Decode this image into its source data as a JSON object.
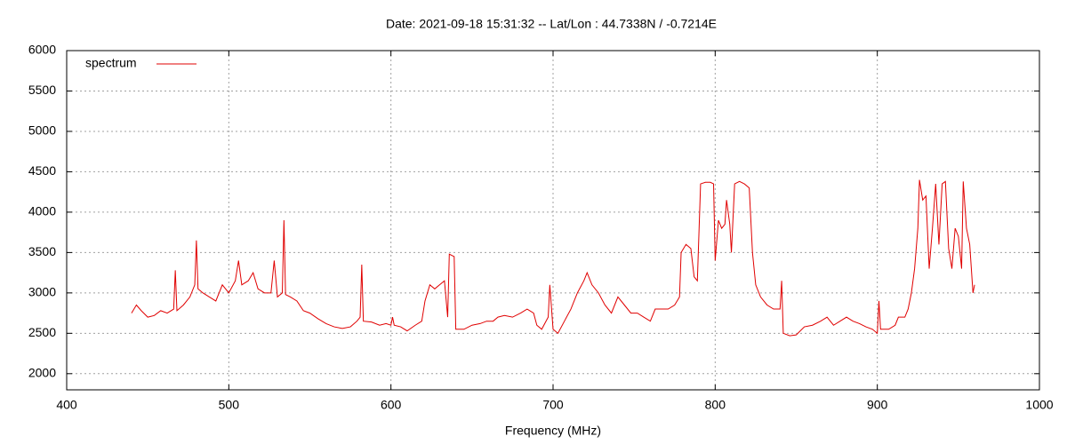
{
  "chart_data": {
    "type": "line",
    "title": "Date: 2021-09-18 15:31:32  --  Lat/Lon : 44.7338N / -0.7214E",
    "x_label": "Frequency (MHz)",
    "legend": "top-left",
    "grid": true,
    "xlim": [
      400,
      1000
    ],
    "xticks": [
      400,
      500,
      600,
      700,
      800,
      900,
      1000
    ],
    "ylim": [
      1800,
      6000
    ],
    "yticks": [
      2000,
      2500,
      3000,
      3500,
      4000,
      4500,
      5000,
      5500,
      6000
    ],
    "series": [
      {
        "name": "spectrum",
        "color": "#e00000",
        "x": [
          440,
          443,
          446,
          450,
          454,
          458,
          462,
          466,
          467,
          468,
          472,
          476,
          479,
          480,
          481,
          484,
          488,
          492,
          496,
          500,
          504,
          506,
          508,
          512,
          515,
          518,
          522,
          526,
          528,
          530,
          533,
          534,
          535,
          538,
          542,
          546,
          550,
          555,
          560,
          565,
          570,
          575,
          579,
          581,
          582,
          583,
          588,
          593,
          597,
          600,
          601,
          602,
          606,
          610,
          615,
          619,
          621,
          624,
          627,
          630,
          633,
          635,
          636,
          639,
          640,
          645,
          650,
          655,
          659,
          663,
          666,
          670,
          675,
          680,
          684,
          688,
          690,
          693,
          697,
          698,
          700,
          703,
          707,
          711,
          715,
          719,
          721,
          724,
          728,
          732,
          736,
          740,
          744,
          748,
          752,
          756,
          760,
          763,
          767,
          771,
          775,
          778,
          779,
          782,
          785,
          787,
          789,
          791,
          794,
          797,
          799,
          800,
          802,
          804,
          806,
          807,
          809,
          810,
          812,
          815,
          818,
          821,
          823,
          825,
          828,
          832,
          836,
          840,
          841,
          842,
          846,
          850,
          855,
          860,
          865,
          869,
          873,
          877,
          881,
          885,
          889,
          893,
          897,
          900,
          901,
          902,
          907,
          911,
          913,
          917,
          919,
          921,
          923,
          925,
          926,
          928,
          930,
          932,
          934,
          936,
          938,
          940,
          942,
          944,
          946,
          948,
          950,
          952,
          953,
          955,
          957,
          958,
          959,
          960
        ],
        "values": [
          2750,
          2850,
          2780,
          2700,
          2720,
          2780,
          2750,
          2800,
          3280,
          2780,
          2850,
          2950,
          3100,
          3650,
          3050,
          3000,
          2950,
          2900,
          3100,
          3000,
          3150,
          3400,
          3100,
          3150,
          3250,
          3050,
          3000,
          3000,
          3400,
          2950,
          3000,
          3900,
          2980,
          2950,
          2900,
          2780,
          2750,
          2680,
          2620,
          2580,
          2560,
          2580,
          2650,
          2700,
          3350,
          2650,
          2640,
          2600,
          2620,
          2600,
          2700,
          2600,
          2580,
          2530,
          2600,
          2650,
          2900,
          3100,
          3050,
          3100,
          3150,
          2700,
          3480,
          3450,
          2550,
          2550,
          2600,
          2620,
          2650,
          2650,
          2700,
          2720,
          2700,
          2750,
          2800,
          2750,
          2600,
          2550,
          2700,
          3100,
          2550,
          2500,
          2650,
          2800,
          3000,
          3150,
          3250,
          3100,
          3000,
          2850,
          2750,
          2950,
          2850,
          2750,
          2750,
          2700,
          2650,
          2800,
          2800,
          2800,
          2850,
          2950,
          3500,
          3600,
          3550,
          3200,
          3150,
          4350,
          4370,
          4370,
          4350,
          3400,
          3900,
          3800,
          3850,
          4150,
          3850,
          3500,
          4350,
          4380,
          4350,
          4300,
          3500,
          3100,
          2950,
          2850,
          2800,
          2800,
          3150,
          2500,
          2470,
          2480,
          2580,
          2600,
          2650,
          2700,
          2600,
          2650,
          2700,
          2650,
          2620,
          2580,
          2550,
          2500,
          2900,
          2550,
          2550,
          2600,
          2700,
          2700,
          2800,
          3000,
          3300,
          3800,
          4400,
          4150,
          4200,
          3300,
          3800,
          4350,
          3600,
          4350,
          4380,
          3550,
          3300,
          3800,
          3700,
          3300,
          4380,
          3800,
          3600,
          3300,
          3000,
          3100
        ]
      }
    ]
  }
}
